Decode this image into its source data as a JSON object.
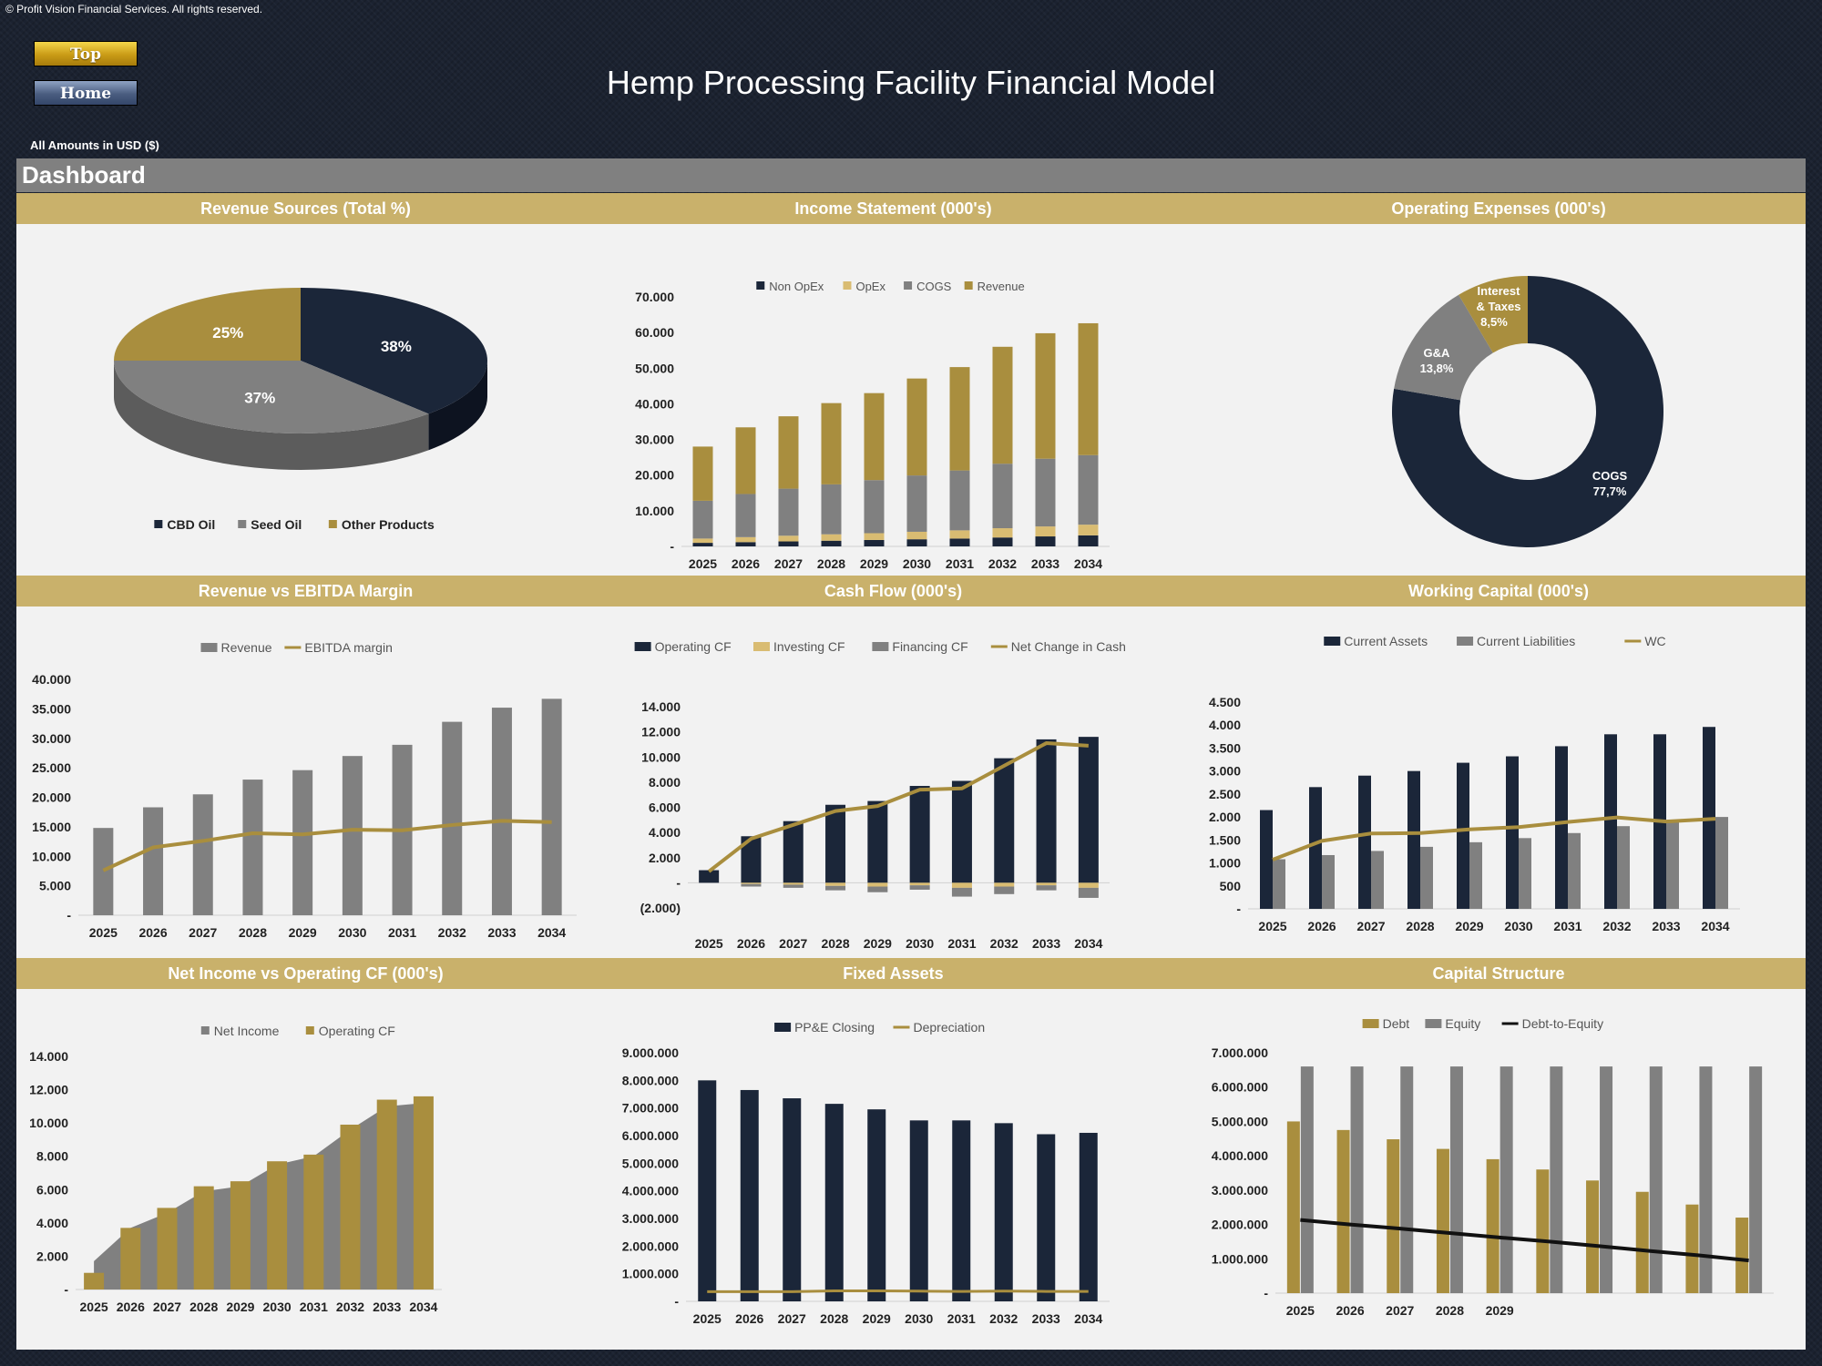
{
  "copyright": "© Profit Vision Financial Services. All rights reserved.",
  "nav": {
    "top_label": "Top",
    "home_label": "Home"
  },
  "title": "Hemp Processing Facility Financial Model",
  "amounts_note": "All Amounts in  USD ($)",
  "section": "Dashboard",
  "colors": {
    "navy": "#1b2639",
    "gold": "#a98e3e",
    "gray": "#808080",
    "lightgold": "#d9bc72",
    "panel_bg": "#f2f2f2",
    "title_bar": "#c9b16b"
  },
  "panels": {
    "revenue_sources": "Revenue Sources (Total %)",
    "income_statement": "Income Statement (000's)",
    "opex": "Operating Expenses (000's)",
    "rev_ebitda": "Revenue vs EBITDA Margin",
    "cash_flow": "Cash Flow (000's)",
    "working_capital": "Working Capital (000's)",
    "ni_ocf": "Net Income vs Operating CF (000's)",
    "fixed_assets": "Fixed Assets",
    "capital_structure": "Capital Structure"
  },
  "chart_data": [
    {
      "id": "revenue_sources",
      "type": "pie",
      "labels": [
        "CBD Oil",
        "Seed Oil",
        "Other Products"
      ],
      "values": [
        38,
        37,
        25
      ],
      "value_labels": [
        "38%",
        "37%",
        "25%"
      ]
    },
    {
      "id": "income_statement",
      "type": "bar",
      "stacked": true,
      "categories": [
        "2025",
        "2026",
        "2027",
        "2028",
        "2029",
        "2030",
        "2031",
        "2032",
        "2033",
        "2034"
      ],
      "series": [
        {
          "name": "Non OpEx",
          "values": [
            1000,
            1200,
            1400,
            1600,
            1800,
            2000,
            2200,
            2500,
            2800,
            3100
          ]
        },
        {
          "name": "OpEx",
          "values": [
            1200,
            1400,
            1600,
            1800,
            1900,
            2100,
            2300,
            2600,
            2800,
            3000
          ]
        },
        {
          "name": "COGS",
          "values": [
            10600,
            12100,
            13200,
            14000,
            14900,
            15800,
            16800,
            18100,
            19000,
            19500
          ]
        },
        {
          "name": "Revenue",
          "values": [
            15200,
            18700,
            20300,
            22800,
            24400,
            27200,
            29000,
            32800,
            35200,
            37000
          ]
        }
      ],
      "y_ticks": [
        "-",
        "10.000",
        "20.000",
        "30.000",
        "40.000",
        "50.000",
        "60.000",
        "70.000"
      ],
      "ylim": [
        0,
        70000
      ]
    },
    {
      "id": "opex",
      "type": "pie",
      "donut": true,
      "labels": [
        "COGS",
        "G&A",
        "Interest & Taxes"
      ],
      "values": [
        77.7,
        13.8,
        8.5
      ],
      "value_labels": [
        "77,7%",
        "13,8%",
        "8,5%"
      ]
    },
    {
      "id": "rev_ebitda",
      "type": "bar",
      "categories": [
        "2025",
        "2026",
        "2027",
        "2028",
        "2029",
        "2030",
        "2031",
        "2032",
        "2033",
        "2034"
      ],
      "series": [
        {
          "name": "Revenue",
          "values": [
            14800,
            18300,
            20500,
            23000,
            24600,
            27000,
            28900,
            32800,
            35200,
            36700
          ]
        },
        {
          "name": "EBITDA margin",
          "type": "line",
          "values": [
            7600,
            11500,
            12600,
            13900,
            13700,
            14500,
            14400,
            15300,
            16000,
            15800
          ]
        }
      ],
      "y_ticks": [
        "-",
        "5.000",
        "10.000",
        "15.000",
        "20.000",
        "25.000",
        "30.000",
        "35.000",
        "40.000"
      ],
      "ylim": [
        0,
        40000
      ]
    },
    {
      "id": "cash_flow",
      "type": "bar",
      "categories": [
        "2025",
        "2026",
        "2027",
        "2028",
        "2029",
        "2030",
        "2031",
        "2032",
        "2033",
        "2034"
      ],
      "series": [
        {
          "name": "Operating CF",
          "values": [
            1000,
            3700,
            4900,
            6200,
            6500,
            7700,
            8100,
            9900,
            11400,
            11600
          ]
        },
        {
          "name": "Investing CF",
          "values": [
            0,
            -100,
            -150,
            -250,
            -300,
            -200,
            -400,
            -300,
            -200,
            -400
          ]
        },
        {
          "name": "Financing CF",
          "values": [
            0,
            -200,
            -250,
            -350,
            -450,
            -350,
            -700,
            -600,
            -400,
            -800
          ]
        },
        {
          "name": "Net Change in Cash",
          "type": "line",
          "values": [
            900,
            3500,
            4600,
            5700,
            6100,
            7400,
            7500,
            9300,
            11100,
            10900
          ]
        }
      ],
      "y_ticks": [
        "(2.000)",
        "-",
        "2.000",
        "4.000",
        "6.000",
        "8.000",
        "10.000",
        "12.000",
        "14.000"
      ],
      "ylim": [
        -2000,
        14000
      ]
    },
    {
      "id": "working_capital",
      "type": "bar",
      "categories": [
        "2025",
        "2026",
        "2027",
        "2028",
        "2029",
        "2030",
        "2031",
        "2032",
        "2033",
        "2034"
      ],
      "series": [
        {
          "name": "Current Assets",
          "values": [
            2150,
            2650,
            2900,
            3000,
            3180,
            3320,
            3540,
            3800,
            3800,
            3960
          ]
        },
        {
          "name": "Current Liabilities",
          "values": [
            1080,
            1170,
            1260,
            1350,
            1450,
            1540,
            1650,
            1800,
            1900,
            2000
          ]
        },
        {
          "name": "WC",
          "type": "line",
          "values": [
            1070,
            1480,
            1640,
            1650,
            1730,
            1780,
            1890,
            1990,
            1900,
            1960
          ]
        }
      ],
      "y_ticks": [
        "-",
        "500",
        "1.000",
        "1.500",
        "2.000",
        "2.500",
        "3.000",
        "3.500",
        "4.000",
        "4.500"
      ],
      "ylim": [
        0,
        4500
      ]
    },
    {
      "id": "ni_ocf",
      "type": "area",
      "categories": [
        "2025",
        "2026",
        "2027",
        "2028",
        "2029",
        "2030",
        "2031",
        "2032",
        "2033",
        "2034"
      ],
      "series": [
        {
          "name": "Net Income",
          "type": "area",
          "values": [
            1700,
            3700,
            4600,
            5900,
            6200,
            7500,
            8000,
            9600,
            11000,
            11200
          ]
        },
        {
          "name": "Operating CF",
          "type": "bar",
          "values": [
            1000,
            3700,
            4900,
            6200,
            6500,
            7700,
            8100,
            9900,
            11400,
            11600
          ]
        }
      ],
      "y_ticks": [
        "-",
        "2.000",
        "4.000",
        "6.000",
        "8.000",
        "10.000",
        "12.000",
        "14.000"
      ],
      "ylim": [
        0,
        14000
      ]
    },
    {
      "id": "fixed_assets",
      "type": "bar",
      "categories": [
        "2025",
        "2026",
        "2027",
        "2028",
        "2029",
        "2030",
        "2031",
        "2032",
        "2033",
        "2034"
      ],
      "series": [
        {
          "name": "PP&E Closing",
          "values": [
            8000000,
            7650000,
            7350000,
            7150000,
            6950000,
            6550000,
            6550000,
            6450000,
            6050000,
            6100000
          ]
        },
        {
          "name": "Depreciation",
          "type": "line",
          "values": [
            350000,
            350000,
            350000,
            380000,
            380000,
            370000,
            360000,
            370000,
            360000,
            360000
          ]
        }
      ],
      "y_ticks": [
        "-",
        "1.000.000",
        "2.000.000",
        "3.000.000",
        "4.000.000",
        "5.000.000",
        "6.000.000",
        "7.000.000",
        "8.000.000",
        "9.000.000"
      ],
      "ylim": [
        0,
        9000000
      ]
    },
    {
      "id": "capital_structure",
      "type": "bar",
      "categories": [
        "2025",
        "2026",
        "2027",
        "2028",
        "2029",
        "",
        "",
        "",
        "",
        ""
      ],
      "series": [
        {
          "name": "Debt",
          "values": [
            5000000,
            4750000,
            4480000,
            4200000,
            3900000,
            3600000,
            3280000,
            2950000,
            2580000,
            2200000
          ]
        },
        {
          "name": "Equity",
          "values": [
            6600000,
            6600000,
            6600000,
            6600000,
            6600000,
            6600000,
            6600000,
            6600000,
            6600000,
            6600000
          ]
        },
        {
          "name": "Debt-to-Equity",
          "type": "line",
          "values": [
            2130000,
            2000000,
            1880000,
            1750000,
            1620000,
            1500000,
            1370000,
            1230000,
            1100000,
            950000
          ]
        }
      ],
      "y_ticks": [
        "-",
        "1.000.000",
        "2.000.000",
        "3.000.000",
        "4.000.000",
        "5.000.000",
        "6.000.000",
        "7.000.000"
      ],
      "ylim": [
        0,
        7000000
      ]
    }
  ]
}
